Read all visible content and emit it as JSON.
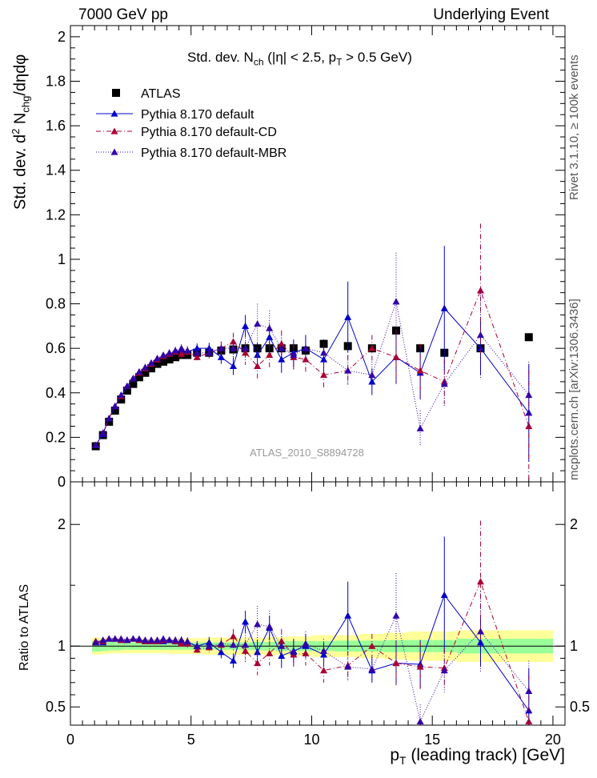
{
  "header": {
    "energy": "7000 GeV pp",
    "category": "Underlying Event"
  },
  "side_labels": {
    "rivet": "Rivet 3.1.10, ≥ 100k events",
    "mcplots": "mcplots.cern.ch [arXiv:1306.3436]"
  },
  "chart_data": [
    {
      "type": "scatter",
      "title": "Std. dev. N_ch (|η| < 2.5, p_T > 0.5 GeV)",
      "ylabel": "Std. dev. d² N_chg/dηdφ",
      "xlim": [
        0,
        20.5
      ],
      "ylim": [
        0,
        2.05
      ],
      "yticks": [
        0.2,
        0.4,
        0.6,
        0.8,
        1,
        1.2,
        1.4,
        1.6,
        1.8,
        2
      ],
      "watermark": "ATLAS_2010_S8894728",
      "legend_position": "top-left",
      "series": [
        {
          "name": "ATLAS",
          "style": "data",
          "color": "#000000",
          "x": [
            1.05,
            1.35,
            1.6,
            1.85,
            2.1,
            2.35,
            2.6,
            2.85,
            3.1,
            3.35,
            3.6,
            3.85,
            4.1,
            4.35,
            4.6,
            4.85,
            5.25,
            5.75,
            6.25,
            6.75,
            7.25,
            7.75,
            8.25,
            8.75,
            9.25,
            9.75,
            10.5,
            11.5,
            12.5,
            13.5,
            14.5,
            15.5,
            17,
            19
          ],
          "y": [
            0.16,
            0.21,
            0.27,
            0.32,
            0.37,
            0.41,
            0.44,
            0.47,
            0.49,
            0.51,
            0.53,
            0.54,
            0.55,
            0.56,
            0.57,
            0.57,
            0.58,
            0.58,
            0.59,
            0.595,
            0.6,
            0.6,
            0.6,
            0.6,
            0.6,
            0.59,
            0.62,
            0.61,
            0.6,
            0.68,
            0.6,
            0.58,
            0.6,
            0.65
          ]
        },
        {
          "name": "Pythia 8.170 default",
          "style": "solid",
          "color": "#0000cc",
          "x": [
            1.05,
            1.35,
            1.6,
            1.85,
            2.1,
            2.35,
            2.6,
            2.85,
            3.1,
            3.35,
            3.6,
            3.85,
            4.1,
            4.35,
            4.6,
            4.85,
            5.25,
            5.75,
            6.25,
            6.75,
            7.25,
            7.75,
            8.25,
            8.75,
            9.25,
            9.75,
            10.5,
            11.5,
            12.5,
            13.5,
            14.5,
            15.5,
            17,
            19
          ],
          "y": [
            0.165,
            0.215,
            0.285,
            0.34,
            0.385,
            0.43,
            0.465,
            0.49,
            0.51,
            0.53,
            0.55,
            0.565,
            0.575,
            0.585,
            0.59,
            0.585,
            0.6,
            0.6,
            0.56,
            0.52,
            0.7,
            0.57,
            0.65,
            0.55,
            0.58,
            0.6,
            0.55,
            0.74,
            0.45,
            0.56,
            0.49,
            0.78,
            0.6,
            0.31
          ],
          "err": [
            0.005,
            0.005,
            0.005,
            0.006,
            0.006,
            0.007,
            0.008,
            0.009,
            0.01,
            0.011,
            0.012,
            0.013,
            0.015,
            0.017,
            0.018,
            0.02,
            0.022,
            0.025,
            0.03,
            0.04,
            0.05,
            0.055,
            0.06,
            0.06,
            0.06,
            0.06,
            0.06,
            0.16,
            0.06,
            0.12,
            0.12,
            0.28,
            0.12,
            0.22
          ]
        },
        {
          "name": "Pythia 8.170 default-CD",
          "style": "dashdot",
          "color": "#aa0033",
          "x": [
            1.05,
            1.35,
            1.6,
            1.85,
            2.1,
            2.35,
            2.6,
            2.85,
            3.1,
            3.35,
            3.6,
            3.85,
            4.1,
            4.35,
            4.6,
            4.85,
            5.25,
            5.75,
            6.25,
            6.75,
            7.25,
            7.75,
            8.25,
            8.75,
            9.25,
            9.75,
            10.5,
            11.5,
            12.5,
            13.5,
            14.5,
            15.5,
            17,
            19
          ],
          "y": [
            0.165,
            0.22,
            0.285,
            0.34,
            0.385,
            0.43,
            0.465,
            0.49,
            0.51,
            0.53,
            0.55,
            0.565,
            0.575,
            0.585,
            0.575,
            0.585,
            0.56,
            0.58,
            0.6,
            0.63,
            0.58,
            0.52,
            0.57,
            0.62,
            0.56,
            0.55,
            0.48,
            0.5,
            0.6,
            0.56,
            0.5,
            0.45,
            0.86,
            0.25
          ],
          "err": [
            0.005,
            0.005,
            0.005,
            0.006,
            0.006,
            0.007,
            0.008,
            0.009,
            0.01,
            0.011,
            0.012,
            0.013,
            0.015,
            0.017,
            0.018,
            0.02,
            0.022,
            0.025,
            0.03,
            0.04,
            0.05,
            0.06,
            0.06,
            0.06,
            0.06,
            0.06,
            0.06,
            0.07,
            0.06,
            0.12,
            0.12,
            0.1,
            0.3,
            0.25
          ]
        },
        {
          "name": "Pythia 8.170 default-MBR",
          "style": "dotted",
          "color": "#3300aa",
          "x": [
            1.05,
            1.35,
            1.6,
            1.85,
            2.1,
            2.35,
            2.6,
            2.85,
            3.1,
            3.35,
            3.6,
            3.85,
            4.1,
            4.35,
            4.6,
            4.85,
            5.25,
            5.75,
            6.25,
            6.75,
            7.25,
            7.75,
            8.25,
            8.75,
            9.25,
            9.75,
            10.5,
            11.5,
            12.5,
            13.5,
            14.5,
            15.5,
            17,
            19
          ],
          "y": [
            0.165,
            0.22,
            0.285,
            0.34,
            0.39,
            0.43,
            0.465,
            0.495,
            0.515,
            0.535,
            0.555,
            0.57,
            0.58,
            0.59,
            0.6,
            0.59,
            0.58,
            0.58,
            0.6,
            0.6,
            0.6,
            0.71,
            0.69,
            0.6,
            0.57,
            0.6,
            0.58,
            0.5,
            0.48,
            0.81,
            0.24,
            0.44,
            0.66,
            0.39
          ],
          "err": [
            0.005,
            0.005,
            0.005,
            0.006,
            0.006,
            0.007,
            0.008,
            0.009,
            0.01,
            0.011,
            0.012,
            0.013,
            0.015,
            0.017,
            0.018,
            0.02,
            0.022,
            0.025,
            0.03,
            0.04,
            0.08,
            0.09,
            0.08,
            0.06,
            0.06,
            0.06,
            0.06,
            0.07,
            0.06,
            0.22,
            0.08,
            0.1,
            0.2,
            0.15
          ]
        }
      ]
    },
    {
      "type": "scatter",
      "ylabel": "Ratio to ATLAS",
      "xlabel": "p_T (leading track) [GeV]",
      "xlim": [
        0,
        20.5
      ],
      "ylim": [
        0.35,
        2.35
      ],
      "yticks": [
        0.5,
        1,
        2
      ],
      "xticks": [
        0,
        5,
        10,
        15,
        20
      ],
      "band_edges": [
        0.9,
        1.3,
        1.6,
        1.85,
        2.1,
        2.35,
        2.6,
        2.85,
        3.1,
        3.35,
        3.6,
        3.85,
        4.1,
        4.35,
        4.6,
        4.85,
        5.5,
        6,
        6.5,
        7,
        7.5,
        8,
        8.5,
        9,
        9.5,
        10,
        11,
        12,
        13,
        14,
        15,
        16,
        18,
        20
      ],
      "band_stat": [
        0.045,
        0.04,
        0.035,
        0.035,
        0.03,
        0.03,
        0.03,
        0.03,
        0.03,
        0.03,
        0.03,
        0.03,
        0.03,
        0.03,
        0.03,
        0.03,
        0.03,
        0.03,
        0.03,
        0.03,
        0.035,
        0.035,
        0.04,
        0.04,
        0.04,
        0.04,
        0.045,
        0.045,
        0.05,
        0.05,
        0.05,
        0.06,
        0.06
      ],
      "band_tot": [
        0.07,
        0.065,
        0.06,
        0.06,
        0.06,
        0.06,
        0.06,
        0.06,
        0.06,
        0.06,
        0.06,
        0.06,
        0.065,
        0.065,
        0.065,
        0.065,
        0.07,
        0.07,
        0.07,
        0.07,
        0.07,
        0.075,
        0.075,
        0.08,
        0.08,
        0.09,
        0.09,
        0.1,
        0.11,
        0.12,
        0.12,
        0.13,
        0.13
      ],
      "series": [
        {
          "name": "Pythia 8.170 default",
          "x": [
            1.05,
            1.35,
            1.6,
            1.85,
            2.1,
            2.35,
            2.6,
            2.85,
            3.1,
            3.35,
            3.6,
            3.85,
            4.1,
            4.35,
            4.6,
            4.85,
            5.25,
            5.75,
            6.25,
            6.75,
            7.25,
            7.75,
            8.25,
            8.75,
            9.25,
            9.75,
            10.5,
            11.5,
            12.5,
            13.5,
            14.5,
            15.5,
            17,
            19
          ],
          "y": [
            1.03,
            1.03,
            1.06,
            1.06,
            1.05,
            1.05,
            1.06,
            1.05,
            1.04,
            1.04,
            1.04,
            1.04,
            1.05,
            1.04,
            1.03,
            1.03,
            1.0,
            1.03,
            0.95,
            0.88,
            1.2,
            0.95,
            1.15,
            0.92,
            0.96,
            1.0,
            0.93,
            1.25,
            0.8,
            0.86,
            0.85,
            1.42,
            1.03,
            0.47
          ],
          "err": [
            0.01,
            0.01,
            0.01,
            0.01,
            0.01,
            0.012,
            0.012,
            0.014,
            0.015,
            0.017,
            0.02,
            0.022,
            0.025,
            0.028,
            0.03,
            0.033,
            0.04,
            0.045,
            0.05,
            0.06,
            0.09,
            0.1,
            0.1,
            0.1,
            0.1,
            0.1,
            0.1,
            0.28,
            0.1,
            0.18,
            0.2,
            0.48,
            0.2,
            0.35
          ]
        },
        {
          "name": "Pythia 8.170 default-CD",
          "x": [
            1.05,
            1.35,
            1.6,
            1.85,
            2.1,
            2.35,
            2.6,
            2.85,
            3.1,
            3.35,
            3.6,
            3.85,
            4.1,
            4.35,
            4.6,
            4.85,
            5.25,
            5.75,
            6.25,
            6.75,
            7.25,
            7.75,
            8.25,
            8.75,
            9.25,
            9.75,
            10.5,
            11.5,
            12.5,
            13.5,
            14.5,
            15.5,
            17,
            19
          ],
          "y": [
            1.04,
            1.04,
            1.06,
            1.06,
            1.05,
            1.05,
            1.06,
            1.05,
            1.04,
            1.04,
            1.04,
            1.05,
            1.05,
            1.04,
            1.02,
            1.02,
            0.97,
            0.99,
            1.01,
            1.08,
            0.96,
            0.86,
            0.94,
            1.04,
            0.93,
            0.94,
            0.8,
            0.84,
            1.0,
            0.86,
            0.83,
            0.82,
            1.53,
            0.38
          ],
          "err": [
            0.01,
            0.01,
            0.01,
            0.01,
            0.01,
            0.012,
            0.012,
            0.014,
            0.015,
            0.017,
            0.02,
            0.022,
            0.025,
            0.028,
            0.03,
            0.033,
            0.04,
            0.045,
            0.05,
            0.06,
            0.09,
            0.1,
            0.1,
            0.1,
            0.1,
            0.1,
            0.1,
            0.12,
            0.1,
            0.18,
            0.2,
            0.16,
            0.5,
            0.38
          ]
        },
        {
          "name": "Pythia 8.170 default-MBR",
          "x": [
            1.05,
            1.35,
            1.6,
            1.85,
            2.1,
            2.35,
            2.6,
            2.85,
            3.1,
            3.35,
            3.6,
            3.85,
            4.1,
            4.35,
            4.6,
            4.85,
            5.25,
            5.75,
            6.25,
            6.75,
            7.25,
            7.75,
            8.25,
            8.75,
            9.25,
            9.75,
            10.5,
            11.5,
            12.5,
            13.5,
            14.5,
            15.5,
            17,
            19
          ],
          "y": [
            1.03,
            1.05,
            1.06,
            1.06,
            1.06,
            1.05,
            1.06,
            1.06,
            1.05,
            1.05,
            1.05,
            1.06,
            1.05,
            1.05,
            1.05,
            1.04,
            1.0,
            1.0,
            1.02,
            1.01,
            1.01,
            1.18,
            1.16,
            1.0,
            0.95,
            1.02,
            0.96,
            0.83,
            0.81,
            1.25,
            0.38,
            0.8,
            1.12,
            0.63
          ],
          "err": [
            0.01,
            0.01,
            0.01,
            0.01,
            0.01,
            0.012,
            0.012,
            0.014,
            0.015,
            0.017,
            0.02,
            0.022,
            0.025,
            0.028,
            0.03,
            0.033,
            0.04,
            0.045,
            0.05,
            0.06,
            0.14,
            0.15,
            0.13,
            0.1,
            0.1,
            0.1,
            0.1,
            0.12,
            0.1,
            0.35,
            0.14,
            0.18,
            0.33,
            0.25
          ]
        }
      ]
    }
  ]
}
